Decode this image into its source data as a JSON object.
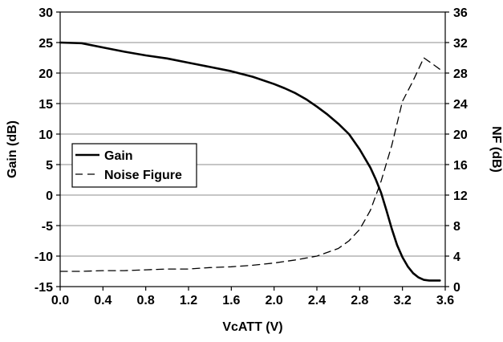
{
  "chart_data": {
    "type": "line",
    "xlabel": "VcATT (V)",
    "ylabel_left": "Gain (dB)",
    "ylabel_right": "NF (dB)",
    "xlim": [
      0.0,
      3.6
    ],
    "ylim_left": [
      -15,
      30
    ],
    "ylim_right": [
      0,
      36
    ],
    "x_ticks": [
      "0.0",
      "0.4",
      "0.8",
      "1.2",
      "1.6",
      "2.0",
      "2.4",
      "2.8",
      "3.2",
      "3.6"
    ],
    "x_tick_values": [
      0.0,
      0.4,
      0.8,
      1.2,
      1.6,
      2.0,
      2.4,
      2.8,
      3.2,
      3.6
    ],
    "y_left_ticks": [
      "30",
      "25",
      "20",
      "15",
      "10",
      "5",
      "0",
      "-5",
      "-10",
      "-15"
    ],
    "y_left_tick_values": [
      30,
      25,
      20,
      15,
      10,
      5,
      0,
      -5,
      -10,
      -15
    ],
    "y_right_ticks": [
      "36",
      "32",
      "28",
      "24",
      "20",
      "16",
      "12",
      "8",
      "4",
      "0"
    ],
    "y_right_tick_values": [
      36,
      32,
      28,
      24,
      20,
      16,
      12,
      8,
      4,
      0
    ],
    "grid": "horizontal",
    "legend_position": "center-left",
    "series": [
      {
        "name": "Gain",
        "axis": "left",
        "style": "solid",
        "color": "#000000",
        "x": [
          0.0,
          0.2,
          0.4,
          0.6,
          0.8,
          1.0,
          1.2,
          1.4,
          1.6,
          1.8,
          2.0,
          2.1,
          2.2,
          2.3,
          2.4,
          2.5,
          2.6,
          2.7,
          2.8,
          2.9,
          2.95,
          3.0,
          3.05,
          3.1,
          3.15,
          3.2,
          3.25,
          3.3,
          3.35,
          3.4,
          3.45,
          3.5,
          3.55
        ],
        "y": [
          25,
          24.9,
          24.2,
          23.5,
          22.9,
          22.4,
          21.7,
          21.0,
          20.3,
          19.4,
          18.2,
          17.5,
          16.7,
          15.7,
          14.5,
          13.2,
          11.7,
          10.0,
          7.5,
          4.5,
          2.6,
          0.4,
          -2.5,
          -5.5,
          -8.2,
          -10.2,
          -11.7,
          -12.8,
          -13.5,
          -13.9,
          -14.0,
          -14.0,
          -14.0
        ]
      },
      {
        "name": "Noise Figure",
        "axis": "right",
        "style": "dashed",
        "color": "#000000",
        "x": [
          0.0,
          0.2,
          0.4,
          0.6,
          0.8,
          1.0,
          1.2,
          1.4,
          1.6,
          1.8,
          2.0,
          2.2,
          2.4,
          2.6,
          2.7,
          2.8,
          2.9,
          3.0,
          3.1,
          3.2,
          3.3,
          3.4,
          3.5,
          3.55
        ],
        "y": [
          2.0,
          2.0,
          2.1,
          2.1,
          2.2,
          2.3,
          2.3,
          2.5,
          2.6,
          2.8,
          3.1,
          3.5,
          4.0,
          5.0,
          6.0,
          7.5,
          10.0,
          13.8,
          18.5,
          24.3,
          27.0,
          30.0,
          29.0,
          28.5
        ]
      }
    ]
  }
}
